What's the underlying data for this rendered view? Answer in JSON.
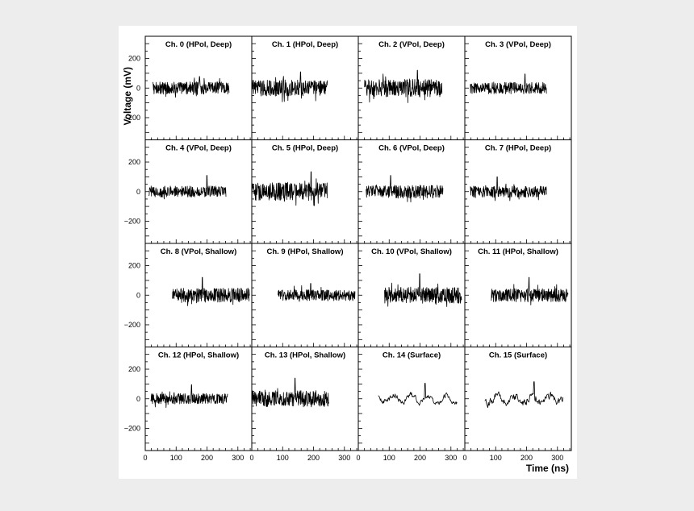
{
  "chart_data": {
    "type": "line",
    "layout": "4x4 grid of panels, shared axes",
    "xlabel": "Time (ns)",
    "ylabel": "Voltage (mV)",
    "xlim": [
      0,
      345
    ],
    "ylim": [
      -350,
      350
    ],
    "x_major_ticks": [
      0,
      100,
      200,
      300
    ],
    "x_tick_labels": [
      "0",
      "100",
      "200",
      "300"
    ],
    "y_major_ticks": [
      200,
      0,
      -200
    ],
    "y_tick_labels": [
      "200",
      "0",
      "−200"
    ],
    "grid": false,
    "legend": "none",
    "line_color": "#000000",
    "panels": [
      {
        "title": "Ch. 0 (HPol, Deep)",
        "t_start": 25,
        "t_end": 272,
        "amplitude": 42,
        "peak": 78,
        "style": "noise"
      },
      {
        "title": "Ch. 1 (HPol, Deep)",
        "t_start": 0,
        "t_end": 245,
        "amplitude": 55,
        "peak": 110,
        "style": "noise"
      },
      {
        "title": "Ch. 2 (VPol, Deep)",
        "t_start": 20,
        "t_end": 272,
        "amplitude": 60,
        "peak": 120,
        "style": "noise"
      },
      {
        "title": "Ch. 3 (VPol, Deep)",
        "t_start": 18,
        "t_end": 265,
        "amplitude": 40,
        "peak": 95,
        "style": "noise"
      },
      {
        "title": "Ch. 4 (VPol, Deep)",
        "t_start": 12,
        "t_end": 262,
        "amplitude": 38,
        "peak": 110,
        "style": "noise"
      },
      {
        "title": "Ch. 5 (HPol, Deep)",
        "t_start": 0,
        "t_end": 245,
        "amplitude": 60,
        "peak": 135,
        "style": "noise"
      },
      {
        "title": "Ch. 6 (VPol, Deep)",
        "t_start": 25,
        "t_end": 275,
        "amplitude": 45,
        "peak": 110,
        "style": "noise"
      },
      {
        "title": "Ch. 7 (HPol, Deep)",
        "t_start": 18,
        "t_end": 265,
        "amplitude": 38,
        "peak": 100,
        "style": "noise"
      },
      {
        "title": "Ch. 8 (VPol, Shallow)",
        "t_start": 88,
        "t_end": 338,
        "amplitude": 48,
        "peak": 120,
        "style": "noise"
      },
      {
        "title": "Ch. 9 (HPol, Shallow)",
        "t_start": 85,
        "t_end": 335,
        "amplitude": 38,
        "peak": 80,
        "style": "noise"
      },
      {
        "title": "Ch. 10 (VPol, Shallow)",
        "t_start": 85,
        "t_end": 335,
        "amplitude": 55,
        "peak": 145,
        "style": "noise"
      },
      {
        "title": "Ch. 11 (HPol, Shallow)",
        "t_start": 85,
        "t_end": 335,
        "amplitude": 45,
        "peak": 120,
        "style": "noise"
      },
      {
        "title": "Ch. 12 (HPol, Shallow)",
        "t_start": 18,
        "t_end": 268,
        "amplitude": 35,
        "peak": 95,
        "style": "noise"
      },
      {
        "title": "Ch. 13 (HPol, Shallow)",
        "t_start": 0,
        "t_end": 250,
        "amplitude": 55,
        "peak": 140,
        "style": "noise"
      },
      {
        "title": "Ch. 14 (Surface)",
        "t_start": 65,
        "t_end": 320,
        "amplitude": 35,
        "peak": 105,
        "style": "smooth"
      },
      {
        "title": "Ch. 15 (Surface)",
        "t_start": 65,
        "t_end": 318,
        "amplitude": 50,
        "peak": 115,
        "style": "smooth"
      }
    ]
  }
}
